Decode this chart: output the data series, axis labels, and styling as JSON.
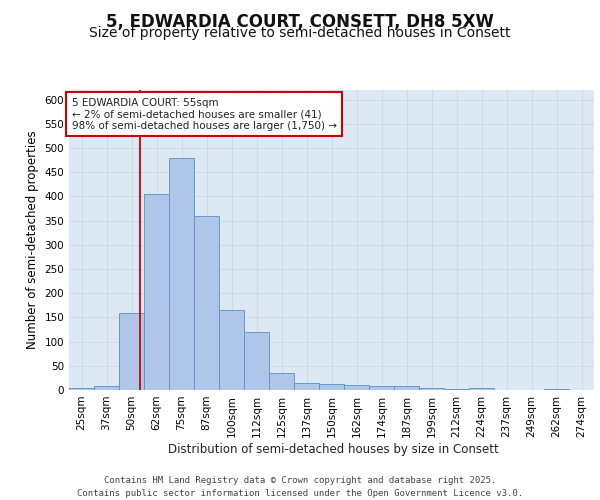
{
  "title1": "5, EDWARDIA COURT, CONSETT, DH8 5XW",
  "title2": "Size of property relative to semi-detached houses in Consett",
  "xlabel": "Distribution of semi-detached houses by size in Consett",
  "ylabel": "Number of semi-detached properties",
  "categories": [
    "25sqm",
    "37sqm",
    "50sqm",
    "62sqm",
    "75sqm",
    "87sqm",
    "100sqm",
    "112sqm",
    "125sqm",
    "137sqm",
    "150sqm",
    "162sqm",
    "174sqm",
    "187sqm",
    "199sqm",
    "212sqm",
    "224sqm",
    "237sqm",
    "249sqm",
    "262sqm",
    "274sqm"
  ],
  "values": [
    5,
    8,
    160,
    405,
    480,
    360,
    165,
    120,
    35,
    15,
    13,
    10,
    9,
    8,
    5,
    3,
    5,
    0,
    0,
    3,
    0
  ],
  "bar_color": "#aec6e8",
  "bar_edge_color": "#5b8fc9",
  "grid_color": "#d0d8e8",
  "background_color": "#dde8f5",
  "annotation_box_color": "#ffffff",
  "annotation_border_color": "#cc0000",
  "annotation_text_line1": "5 EDWARDIA COURT: 55sqm",
  "annotation_text_line2": "← 2% of semi-detached houses are smaller (41)",
  "annotation_text_line3": "98% of semi-detached houses are larger (1,750) →",
  "red_line_x": 2.35,
  "ylim": [
    0,
    620
  ],
  "yticks": [
    0,
    50,
    100,
    150,
    200,
    250,
    300,
    350,
    400,
    450,
    500,
    550,
    600
  ],
  "footer_line1": "Contains HM Land Registry data © Crown copyright and database right 2025.",
  "footer_line2": "Contains public sector information licensed under the Open Government Licence v3.0.",
  "title1_fontsize": 12,
  "title2_fontsize": 10,
  "tick_fontsize": 7.5,
  "label_fontsize": 8.5,
  "footer_fontsize": 6.5,
  "annotation_fontsize": 7.5
}
